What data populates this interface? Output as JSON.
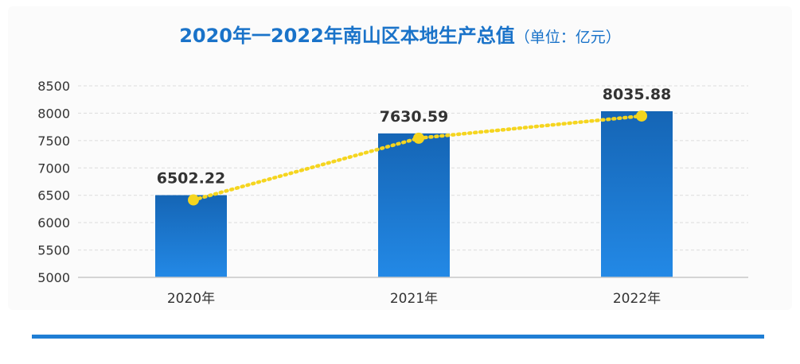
{
  "title": {
    "main": "2020年一2022年南山区本地生产总值",
    "unit": "（单位：亿元）"
  },
  "colors": {
    "title": "#1a73c9",
    "bar_top": "#1565b5",
    "bar_bottom": "#2389e6",
    "line": "#f5d51f",
    "grid": "#dcdcdc",
    "label": "#333333",
    "rule": "#1f7ed4"
  },
  "chart_data": {
    "type": "bar",
    "categories": [
      "2020年",
      "2021年",
      "2022年"
    ],
    "values": [
      6502.22,
      7630.59,
      8035.88
    ],
    "value_labels": [
      "6502.22",
      "7630.59",
      "8035.88"
    ],
    "ylim": [
      5000,
      8500
    ],
    "yticks": [
      "5000",
      "5500",
      "6000",
      "6500",
      "7000",
      "7500",
      "8000",
      "8500"
    ],
    "xlabel": "",
    "ylabel": "",
    "grid": true,
    "overlay_line": {
      "style": "dotted",
      "markers": true
    }
  }
}
